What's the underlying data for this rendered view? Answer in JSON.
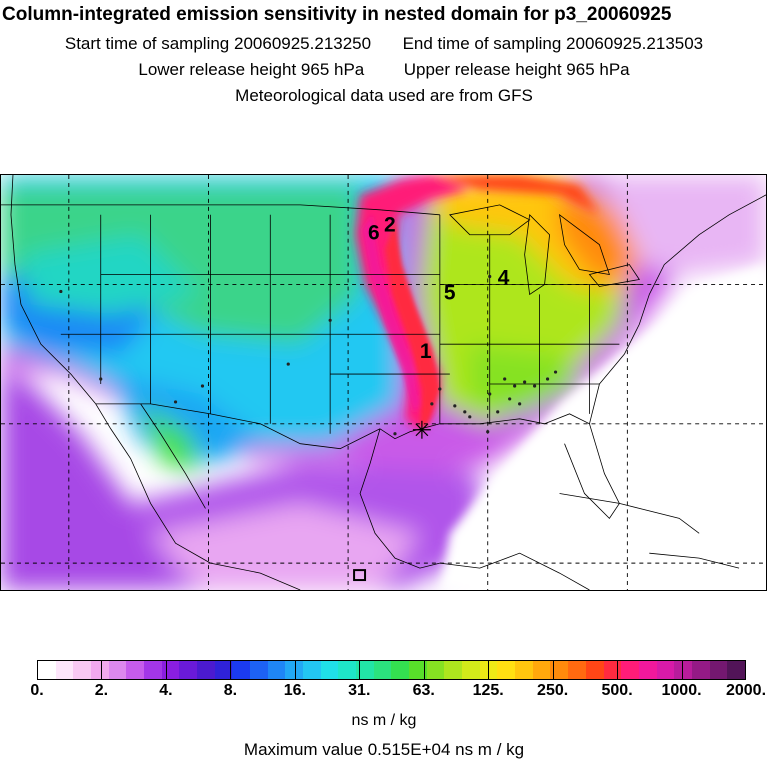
{
  "title": "Column-integrated emission sensitivity in nested domain for p3_20060925",
  "sampling": {
    "start_label": "Start time of sampling",
    "start_value": "20060925.213250",
    "end_label": "End time of sampling",
    "end_value": "20060925.213503"
  },
  "release": {
    "lower_label": "Lower release height",
    "lower_value": "965 hPa",
    "upper_label": "Upper release height",
    "upper_value": "965 hPa"
  },
  "met_note": "Meteorological data used are from GFS",
  "map": {
    "markers": [
      {
        "label": "1"
      },
      {
        "label": "2"
      },
      {
        "label": "4"
      },
      {
        "label": "5"
      },
      {
        "label": "6"
      }
    ]
  },
  "colorbar": {
    "tick_labels": [
      "0.",
      "2.",
      "4.",
      "8.",
      "16.",
      "31.",
      "63.",
      "125.",
      "250.",
      "500.",
      "1000.",
      "2000."
    ],
    "colors": [
      "#ffffff",
      "#fde6fb",
      "#f8c8f3",
      "#f2a9ee",
      "#dd88ee",
      "#c65cec",
      "#a336e8",
      "#8a1ee0",
      "#6a1ad8",
      "#4b1ad0",
      "#2f22d8",
      "#1b3bf0",
      "#1d62f4",
      "#1f86f6",
      "#22a8f5",
      "#23c6f3",
      "#20e0e8",
      "#1ee6c8",
      "#22e4a6",
      "#2be27e",
      "#34e050",
      "#58e02a",
      "#86e222",
      "#aee61e",
      "#d2ea1a",
      "#eeea16",
      "#ffe012",
      "#ffc60e",
      "#ffa80c",
      "#ff8a0c",
      "#ff6a10",
      "#ff4616",
      "#ff2a40",
      "#ff1c78",
      "#f2189c",
      "#d81aa8",
      "#b81c9c",
      "#941a86",
      "#741870",
      "#521458"
    ],
    "units": "ns m / kg"
  },
  "max_value_label": "Maximum value",
  "max_value": "0.515E+04 ns m / kg"
}
